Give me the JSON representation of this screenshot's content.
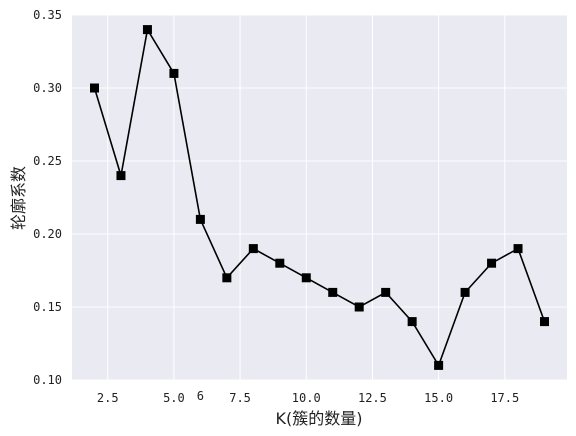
{
  "chart_data": {
    "type": "line",
    "title": "",
    "xlabel": "K(簇的数量)",
    "ylabel": "轮廓系数",
    "x": [
      2,
      3,
      4,
      5,
      6,
      7,
      8,
      9,
      10,
      11,
      12,
      13,
      14,
      15,
      16,
      17,
      18,
      19
    ],
    "series": [
      {
        "values": [
          0.3,
          0.24,
          0.34,
          0.31,
          0.21,
          0.17,
          0.19,
          0.18,
          0.17,
          0.16,
          0.15,
          0.16,
          0.14,
          0.11,
          0.16,
          0.18,
          0.19,
          0.14
        ]
      }
    ],
    "xlim": [
      1.15,
      19.85
    ],
    "ylim": [
      0.1,
      0.35
    ],
    "x_ticks": [
      "2.5",
      "5.0",
      "7.5",
      "10.0",
      "12.5",
      "15.0",
      "17.5"
    ],
    "x_tick_values": [
      2.5,
      5.0,
      7.5,
      10.0,
      12.5,
      15.0,
      17.5
    ],
    "x_annotation": {
      "text": "6",
      "x": 6
    },
    "y_ticks": [
      "0.10",
      "0.15",
      "0.20",
      "0.25",
      "0.30",
      "0.35"
    ],
    "y_tick_values": [
      0.1,
      0.15,
      0.2,
      0.25,
      0.3,
      0.35
    ],
    "grid": true,
    "colors": {
      "plot_bg": "#eaeaf2",
      "grid": "#ffffff",
      "line": "#000000",
      "marker": "#000000"
    },
    "marker": "square"
  }
}
